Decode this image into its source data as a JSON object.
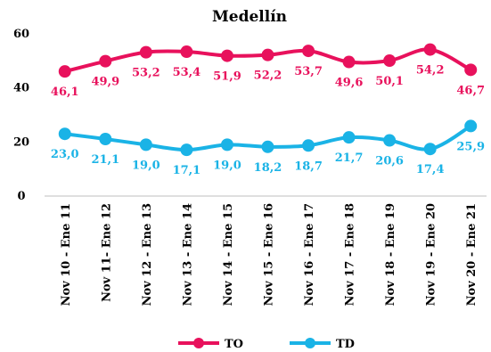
{
  "chart_data": {
    "type": "line",
    "title": "Medellín",
    "categories": [
      "Nov 10 - Ene 11",
      "Nov 11- Ene 12",
      "Nov 12 - Ene 13",
      "Nov 13 - Ene 14",
      "Nov 14 - Ene 15",
      "Nov 15 - Ene 16",
      "Nov 16 - Ene 17",
      "Nov 17 - Ene 18",
      "Nov 18 - Ene 19",
      "Nov 19 - Ene 20",
      "Nov 20 - Ene 21"
    ],
    "series": [
      {
        "name": "TO",
        "color": "#e8115c",
        "values": [
          46.1,
          49.9,
          53.2,
          53.4,
          51.9,
          52.2,
          53.7,
          49.6,
          50.1,
          54.2,
          46.7
        ],
        "labels": [
          "46,1",
          "49,9",
          "53,2",
          "53,4",
          "51,9",
          "52,2",
          "53,7",
          "49,6",
          "50,1",
          "54,2",
          "46,7"
        ],
        "label_position": "below"
      },
      {
        "name": "TD",
        "color": "#1ab3e6",
        "values": [
          23.0,
          21.1,
          19.0,
          17.1,
          19.0,
          18.2,
          18.7,
          21.7,
          20.6,
          17.4,
          25.9
        ],
        "labels": [
          "23,0",
          "21,1",
          "19,0",
          "17,1",
          "19,0",
          "18,2",
          "18,7",
          "21,7",
          "20,6",
          "17,4",
          "25,9"
        ],
        "label_position": "below"
      }
    ],
    "ylim": [
      0,
      60
    ],
    "yticks": [
      0,
      20,
      40,
      60
    ],
    "ytick_labels": [
      "0",
      "20",
      "40",
      "60"
    ],
    "grid": false,
    "legend": "bottom-center"
  }
}
